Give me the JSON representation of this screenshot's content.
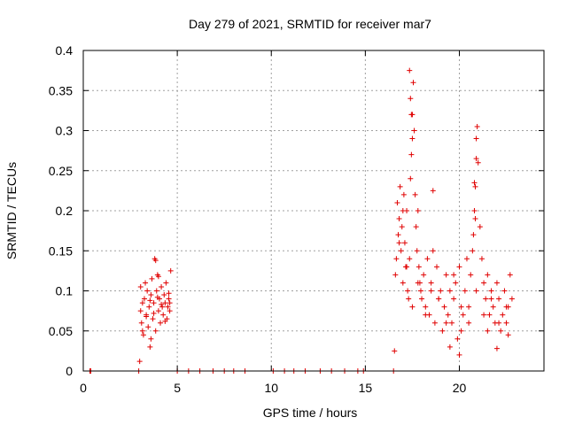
{
  "chart_data": {
    "type": "scatter",
    "title": "Day 279 of 2021, SRMTID for receiver mar7",
    "xlabel": "GPS time / hours",
    "ylabel": "SRMTID / TECUs",
    "xlim": [
      0,
      24.5
    ],
    "ylim": [
      0,
      0.4
    ],
    "xticks": [
      0,
      5,
      10,
      15,
      20
    ],
    "xtick_labels": [
      "0",
      "5",
      "10",
      "15",
      "20"
    ],
    "yticks": [
      0,
      0.05,
      0.1,
      0.15,
      0.2,
      0.25,
      0.3,
      0.35,
      0.4
    ],
    "ytick_labels": [
      "0",
      "0.05",
      "0.1",
      "0.15",
      "0.2",
      "0.25",
      "0.3",
      "0.35",
      "0.4"
    ],
    "grid": true,
    "marker": "plus",
    "series": [
      {
        "name": "SRMTID",
        "color": "#e00000",
        "x": [
          0.35,
          0.4,
          2.95,
          3.0,
          3.05,
          3.05,
          3.1,
          3.15,
          3.2,
          3.25,
          3.3,
          3.35,
          3.4,
          3.45,
          3.5,
          3.55,
          3.6,
          3.65,
          3.7,
          3.75,
          3.8,
          3.85,
          3.9,
          3.95,
          4.0,
          4.05,
          4.1,
          4.15,
          4.2,
          4.25,
          4.3,
          4.35,
          4.4,
          4.45,
          4.5,
          4.55,
          4.6,
          4.65,
          3.15,
          3.35,
          3.55,
          3.75,
          3.95,
          4.15,
          4.35,
          4.55,
          3.85,
          4.0,
          3.6,
          4.6,
          5.0,
          5.6,
          6.2,
          6.9,
          7.5,
          8.0,
          8.6,
          10.1,
          10.7,
          11.2,
          11.8,
          12.6,
          13.2,
          13.9,
          14.6,
          14.9,
          16.5,
          16.55,
          16.6,
          16.65,
          16.7,
          16.75,
          16.8,
          16.85,
          16.9,
          16.95,
          17.0,
          17.05,
          17.1,
          17.15,
          17.2,
          17.25,
          17.3,
          17.35,
          17.4,
          17.45,
          17.5,
          17.55,
          17.6,
          17.65,
          17.7,
          17.75,
          17.8,
          17.85,
          17.9,
          17.95,
          18.0,
          18.1,
          18.2,
          18.3,
          18.4,
          18.5,
          18.6,
          18.7,
          18.8,
          18.9,
          19.0,
          19.1,
          19.2,
          19.3,
          19.4,
          19.5,
          19.6,
          19.7,
          19.8,
          19.9,
          20.0,
          20.1,
          20.2,
          20.3,
          20.4,
          20.5,
          20.6,
          20.7,
          20.75,
          20.8,
          20.85,
          20.9,
          20.95,
          21.0,
          21.1,
          21.2,
          21.3,
          21.4,
          21.5,
          21.6,
          21.7,
          21.8,
          21.9,
          22.0,
          22.1,
          22.2,
          22.3,
          22.4,
          22.5,
          22.6,
          22.7,
          22.8,
          16.8,
          17.0,
          17.2,
          17.5,
          17.8,
          18.2,
          18.5,
          18.9,
          19.3,
          19.7,
          20.1,
          20.5,
          20.9,
          21.3,
          21.7,
          22.1,
          22.5,
          17.35,
          17.4,
          17.45,
          17.5,
          20.8,
          20.85,
          20.9,
          18.6,
          19.5,
          20.0,
          21.5,
          22.0,
          22.6
        ],
        "y": [
          0,
          0,
          0,
          0.012,
          0.075,
          0.105,
          0.06,
          0.085,
          0.045,
          0.09,
          0.11,
          0.07,
          0.1,
          0.055,
          0.08,
          0.03,
          0.095,
          0.115,
          0.065,
          0.085,
          0.14,
          0.05,
          0.1,
          0.12,
          0.075,
          0.09,
          0.06,
          0.105,
          0.08,
          0.07,
          0.095,
          0.085,
          0.11,
          0.065,
          0.08,
          0.09,
          0.075,
          0.125,
          0.05,
          0.068,
          0.088,
          0.072,
          0.092,
          0.083,
          0.062,
          0.097,
          0.138,
          0.118,
          0.04,
          0.085,
          0,
          0,
          0,
          0,
          0,
          0,
          0,
          0,
          0,
          0,
          0,
          0,
          0,
          0,
          0,
          0,
          0,
          0.025,
          0.12,
          0.14,
          0.21,
          0.17,
          0.19,
          0.23,
          0.15,
          0.18,
          0.11,
          0.22,
          0.16,
          0.13,
          0.2,
          0.1,
          0.09,
          0.14,
          0.24,
          0.27,
          0.32,
          0.36,
          0.3,
          0.22,
          0.18,
          0.15,
          0.2,
          0.13,
          0.11,
          0.1,
          0.09,
          0.12,
          0.08,
          0.14,
          0.07,
          0.11,
          0.15,
          0.06,
          0.13,
          0.09,
          0.1,
          0.05,
          0.08,
          0.12,
          0.07,
          0.1,
          0.06,
          0.09,
          0.11,
          0.04,
          0.13,
          0.08,
          0.07,
          0.1,
          0.14,
          0.06,
          0.12,
          0.15,
          0.17,
          0.2,
          0.23,
          0.29,
          0.305,
          0.26,
          0.18,
          0.14,
          0.11,
          0.09,
          0.12,
          0.07,
          0.1,
          0.08,
          0.06,
          0.11,
          0.09,
          0.05,
          0.07,
          0.1,
          0.06,
          0.08,
          0.12,
          0.09,
          0.16,
          0.2,
          0.13,
          0.08,
          0.11,
          0.07,
          0.1,
          0.09,
          0.06,
          0.12,
          0.05,
          0.08,
          0.1,
          0.07,
          0.09,
          0.06,
          0.08,
          0.375,
          0.34,
          0.32,
          0.29,
          0.235,
          0.19,
          0.265,
          0.225,
          0.03,
          0.02,
          0.05,
          0.028,
          0.045
        ]
      }
    ]
  }
}
